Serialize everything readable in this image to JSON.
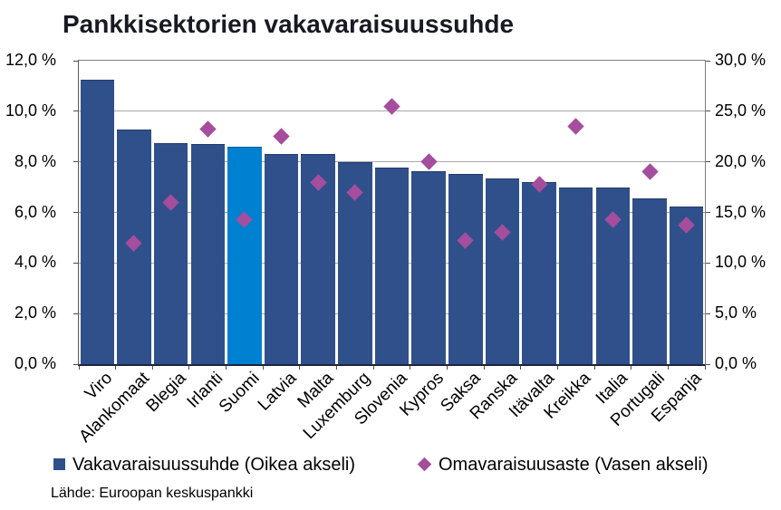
{
  "title": "Pankkisektorien vakavaraisuussuhde",
  "source": "Lähde: Euroopan keskuspankki",
  "legend": {
    "bar_series_label": "Vakavaraisuussuhde (Oikea akseli)",
    "diamond_series_label": "Omavaraisuusaste (Vasen akseli)"
  },
  "colors": {
    "bar": "#30508B",
    "bar_highlight": "#0080D0",
    "diamond": "#A44E9D",
    "grid": "#A8A8A8",
    "axis_line": "#1B2440",
    "title_text": "#191923"
  },
  "chart_data": {
    "type": "bar",
    "title": "Pankkisektorien vakavaraisuussuhde",
    "categories": [
      "Viro",
      "Alankomaat",
      "Blegia",
      "Irlanti",
      "Suomi",
      "Latvia",
      "Malta",
      "Luxemburg",
      "Slovenia",
      "Kypros",
      "Saksa",
      "Ranska",
      "Itävalta",
      "Kreikka",
      "Italia",
      "Portugali",
      "Espanja"
    ],
    "series": [
      {
        "name": "Vakavaraisuussuhde (Oikea akseli)",
        "type": "bar",
        "axis": "right",
        "unit": "%",
        "values": [
          28.0,
          23.1,
          21.8,
          21.7,
          21.4,
          20.7,
          20.7,
          19.9,
          19.3,
          19.0,
          18.7,
          18.3,
          17.9,
          17.4,
          17.4,
          16.3,
          15.5
        ],
        "highlight_category": "Suomi"
      },
      {
        "name": "Omavaraisuusaste (Vasen akseli)",
        "type": "scatter-diamond",
        "axis": "left",
        "unit": "%",
        "values": [
          null,
          4.8,
          6.4,
          9.3,
          5.7,
          9.0,
          7.2,
          6.8,
          10.2,
          8.0,
          4.9,
          5.2,
          7.1,
          9.4,
          5.7,
          7.6,
          5.5
        ]
      }
    ],
    "left_axis": {
      "min": 0,
      "max": 12,
      "tick_labels": [
        "12,0 %",
        "10,0 %",
        "8,0 %",
        "6,0 %",
        "4,0 %",
        "2,0 %",
        "0,0 %"
      ]
    },
    "right_axis": {
      "min": 0,
      "max": 30,
      "tick_labels": [
        "30,0 %",
        "25,0 %",
        "20,0 %",
        "15,0 %",
        "10,0 %",
        "5,0 %",
        "0,0 %"
      ]
    },
    "grid": true,
    "legend_position": "bottom"
  }
}
